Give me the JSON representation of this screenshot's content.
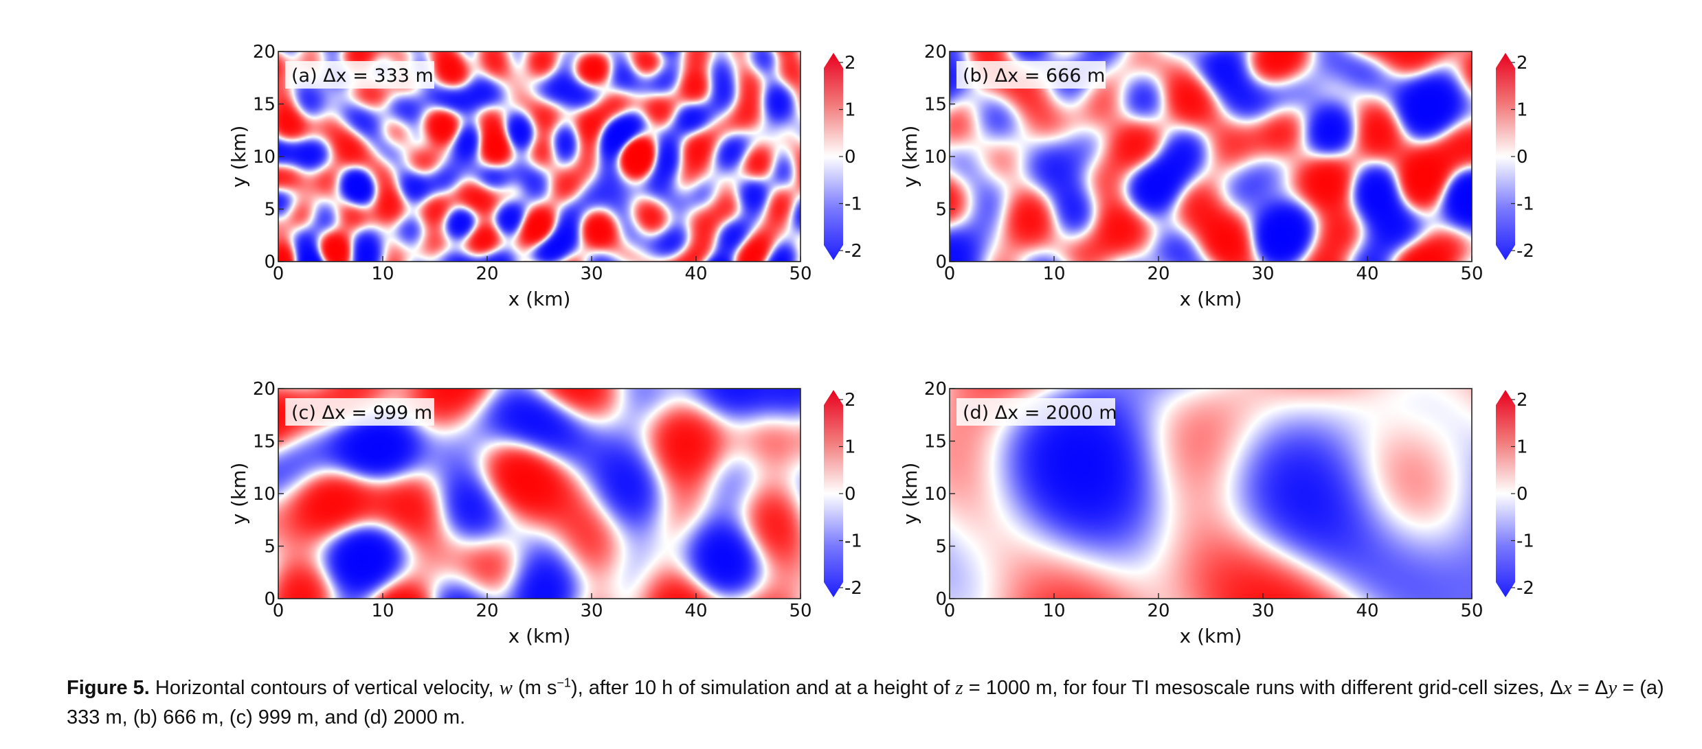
{
  "figure": {
    "colormap": {
      "negative": "#0000ff",
      "zero": "#ffffff",
      "positive": "#ff0000"
    },
    "colorbar_ticks": [
      "2",
      "1",
      "0",
      "-1",
      "-2"
    ],
    "x_ticks": [
      "0",
      "10",
      "20",
      "30",
      "40",
      "50"
    ],
    "y_ticks": [
      "0",
      "5",
      "10",
      "15",
      "20"
    ]
  },
  "panels": [
    {
      "label": "(a) Δx = 333 m",
      "xlabel": "x (km)",
      "ylabel": "y (km)"
    },
    {
      "label": "(b) Δx = 666 m",
      "xlabel": "x (km)",
      "ylabel": "y (km)"
    },
    {
      "label": "(c) Δx = 999 m",
      "xlabel": "x (km)",
      "ylabel": "y (km)"
    },
    {
      "label": "(d) Δx = 2000 m",
      "xlabel": "x (km)",
      "ylabel": "y (km)"
    }
  ],
  "caption": {
    "fig_label": "Figure 5.",
    "t1": " Horizontal contours of vertical velocity, ",
    "w": "w",
    "t2": " (m s",
    "sup": "−1",
    "t3": "), after 10 h of simulation and at a height of ",
    "z": "z",
    "t4": " = 1000 m, for four TI mesoscale runs with different grid-cell sizes, Δ",
    "x": "x",
    "t5": " = Δ",
    "y": "y",
    "t6": " = (a) 333 m, (b) 666 m, (c) 999 m, and (d) 2000 m."
  },
  "chart_data": [
    {
      "type": "heatmap",
      "title": "(a) Δx = 333 m",
      "xlabel": "x (km)",
      "ylabel": "y (km)",
      "xlim": [
        0,
        50
      ],
      "ylim": [
        0,
        20
      ],
      "colorbar": {
        "range": [
          -2,
          2
        ],
        "ticks": [
          2,
          1,
          0,
          -1,
          -2
        ]
      }
    },
    {
      "type": "heatmap",
      "title": "(b) Δx = 666 m",
      "xlabel": "x (km)",
      "ylabel": "y (km)",
      "xlim": [
        0,
        50
      ],
      "ylim": [
        0,
        20
      ],
      "colorbar": {
        "range": [
          -2,
          2
        ],
        "ticks": [
          2,
          1,
          0,
          -1,
          -2
        ]
      }
    },
    {
      "type": "heatmap",
      "title": "(c) Δx = 999 m",
      "xlabel": "x (km)",
      "ylabel": "y (km)",
      "xlim": [
        0,
        50
      ],
      "ylim": [
        0,
        20
      ],
      "colorbar": {
        "range": [
          -2,
          2
        ],
        "ticks": [
          2,
          1,
          0,
          -1,
          -2
        ]
      }
    },
    {
      "type": "heatmap",
      "title": "(d) Δx = 2000 m",
      "xlabel": "x (km)",
      "ylabel": "y (km)",
      "xlim": [
        0,
        50
      ],
      "ylim": [
        0,
        20
      ],
      "colorbar": {
        "range": [
          -2,
          2
        ],
        "ticks": [
          2,
          1,
          0,
          -1,
          -2
        ]
      }
    }
  ]
}
